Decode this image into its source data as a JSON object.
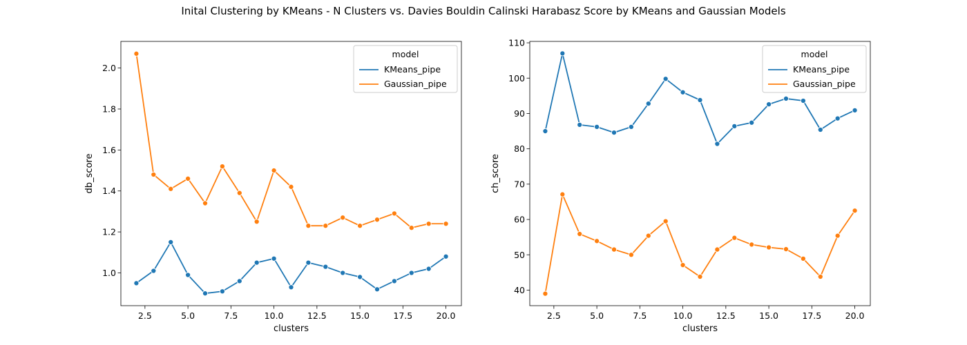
{
  "suptitle": "Inital Clustering by KMeans - N Clusters vs. Davies Bouldin Calinski Harabasz Score by KMeans and Gaussian Models",
  "colors": {
    "kmeans": "#1f77b4",
    "gaussian": "#ff7f0e"
  },
  "chart_data": [
    {
      "type": "line",
      "xlabel": "clusters",
      "ylabel": "db_score",
      "xlim": [
        1.1,
        20.9
      ],
      "ylim": [
        0.84,
        2.13
      ],
      "xticks": [
        2.5,
        5.0,
        7.5,
        10.0,
        12.5,
        15.0,
        17.5,
        20.0
      ],
      "xtick_labels": [
        "2.5",
        "5.0",
        "7.5",
        "10.0",
        "12.5",
        "15.0",
        "17.5",
        "20.0"
      ],
      "yticks": [
        1.0,
        1.2,
        1.4,
        1.6,
        1.8,
        2.0
      ],
      "ytick_labels": [
        "1.0",
        "1.2",
        "1.4",
        "1.6",
        "1.8",
        "2.0"
      ],
      "legend": {
        "title": "model",
        "position": "top-right"
      },
      "x": [
        2,
        3,
        4,
        5,
        6,
        7,
        8,
        9,
        10,
        11,
        12,
        13,
        14,
        15,
        16,
        17,
        18,
        19,
        20
      ],
      "series": [
        {
          "name": "KMeans_pipe",
          "color": "#1f77b4",
          "values": [
            0.95,
            1.01,
            1.15,
            0.99,
            0.9,
            0.91,
            0.96,
            1.05,
            1.07,
            0.93,
            1.05,
            1.03,
            1.0,
            0.98,
            0.92,
            0.96,
            1.0,
            1.02,
            1.08
          ]
        },
        {
          "name": "Gaussian_pipe",
          "color": "#ff7f0e",
          "values": [
            2.07,
            1.48,
            1.41,
            1.46,
            1.34,
            1.52,
            1.39,
            1.25,
            1.5,
            1.42,
            1.23,
            1.23,
            1.27,
            1.23,
            1.26,
            1.29,
            1.22,
            1.24,
            1.24
          ]
        }
      ]
    },
    {
      "type": "line",
      "xlabel": "clusters",
      "ylabel": "ch_score",
      "xlim": [
        1.1,
        20.9
      ],
      "ylim": [
        35.6,
        110.4
      ],
      "xticks": [
        2.5,
        5.0,
        7.5,
        10.0,
        12.5,
        15.0,
        17.5,
        20.0
      ],
      "xtick_labels": [
        "2.5",
        "5.0",
        "7.5",
        "10.0",
        "12.5",
        "15.0",
        "17.5",
        "20.0"
      ],
      "yticks": [
        40,
        50,
        60,
        70,
        80,
        90,
        100,
        110
      ],
      "ytick_labels": [
        "40",
        "50",
        "60",
        "70",
        "80",
        "90",
        "100",
        "110"
      ],
      "legend": {
        "title": "model",
        "position": "top-right"
      },
      "x": [
        2,
        3,
        4,
        5,
        6,
        7,
        8,
        9,
        10,
        11,
        12,
        13,
        14,
        15,
        16,
        17,
        18,
        19,
        20
      ],
      "series": [
        {
          "name": "KMeans_pipe",
          "color": "#1f77b4",
          "values": [
            85.0,
            107.0,
            86.8,
            86.2,
            84.6,
            86.2,
            92.8,
            99.8,
            96.0,
            93.8,
            81.4,
            86.4,
            87.4,
            92.6,
            94.2,
            93.6,
            85.4,
            88.6,
            90.9
          ]
        },
        {
          "name": "Gaussian_pipe",
          "color": "#ff7f0e",
          "values": [
            39.0,
            67.1,
            55.9,
            53.9,
            51.5,
            50.0,
            55.4,
            59.5,
            47.1,
            43.8,
            51.5,
            54.8,
            52.9,
            52.1,
            51.6,
            48.9,
            43.8,
            55.4,
            62.5
          ]
        }
      ]
    }
  ]
}
